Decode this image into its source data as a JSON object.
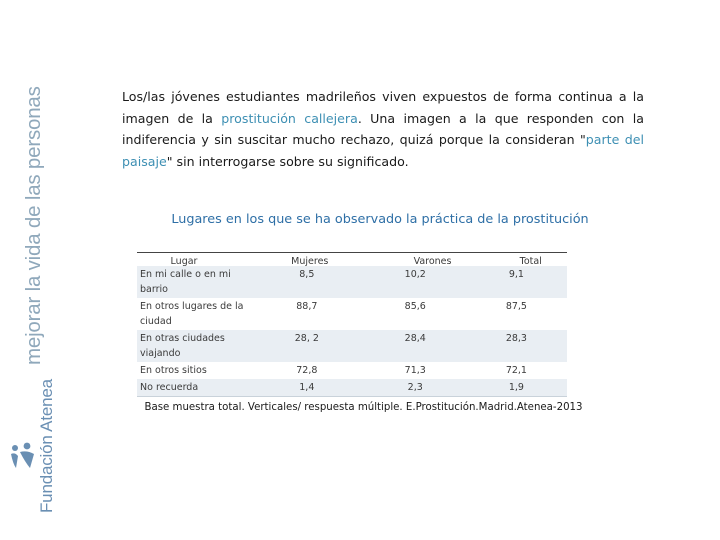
{
  "sidebar": {
    "tagline": "mejorar la vida de las personas",
    "brand": "Fundación Atenea",
    "logo_icon": "atenea-figures-logo",
    "colors": {
      "tagline": "#8fa8bb",
      "brand": "#6a8fb3"
    }
  },
  "intro": {
    "p1": "Los/las jóvenes estudiantes madrileños viven expuestos de forma continua a la imagen de la ",
    "hl1": "prostitución callejera",
    "p2": ". Una imagen a la que responden con la indiferencia y sin suscitar mucho rechazo, quizá porque la consideran \"",
    "hl2": "parte del paisaje",
    "p3": "\" sin interrogarse sobre su significado.",
    "highlight_color": "#3d8fb3"
  },
  "table": {
    "title": "Lugares en los que se ha observado la práctica de la prostitución",
    "headers": [
      "Lugar",
      "Mujeres",
      "Varones",
      "Total"
    ],
    "rows": [
      {
        "place": "En mi calle o en mi barrio",
        "mujeres": "8,5",
        "varones": "10,2",
        "total": "9,1"
      },
      {
        "place": "En otros lugares de la ciudad",
        "mujeres": "88,7",
        "varones": "85,6",
        "total": "87,5"
      },
      {
        "place": "En otras ciudades viajando",
        "mujeres": "28, 2",
        "varones": "28,4",
        "total": "28,3"
      },
      {
        "place": "En otros sitios",
        "mujeres": "72,8",
        "varones": "71,3",
        "total": "72,1"
      },
      {
        "place": "No recuerda",
        "mujeres": "1,4",
        "varones": "2,3",
        "total": "1,9"
      }
    ],
    "note": "Base muestra total. Verticales/ respuesta múltiple. E.Prostitución.Madrid.Atenea-2013",
    "colors": {
      "title": "#2e6fa6",
      "shade": "#e9eef3"
    }
  }
}
